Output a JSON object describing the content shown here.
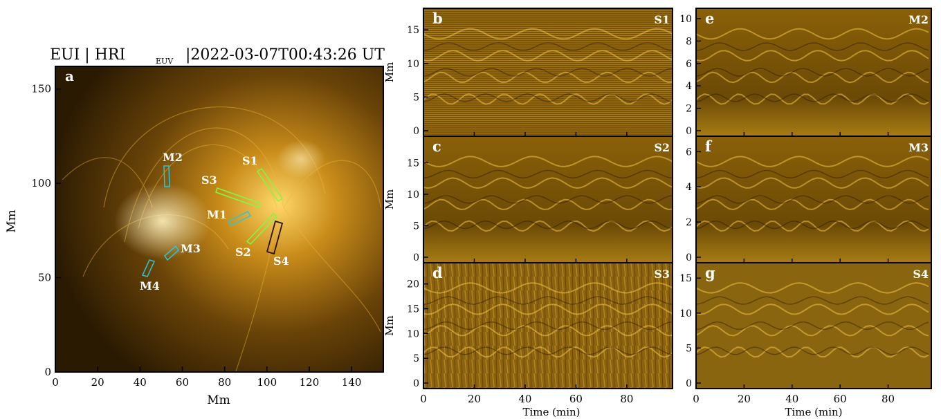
{
  "figure": {
    "panel_a": {
      "title": "EUI | HRI",
      "title_sub": "EUV",
      "title_time": "|2022-03-07T00:43:26 UT",
      "letter": "a",
      "xlabel": "Mm",
      "ylabel": "Mm",
      "xticks": [
        "0",
        "20",
        "40",
        "60",
        "80",
        "100",
        "120",
        "140"
      ],
      "yticks": [
        "0",
        "50",
        "100",
        "150"
      ],
      "slits": [
        "S1",
        "S2",
        "S3",
        "S4"
      ],
      "markers": [
        "M1",
        "M2",
        "M3",
        "M4"
      ]
    },
    "time_distance": {
      "xlabel": "Time (min)",
      "xticks": [
        "0",
        "20",
        "40",
        "60",
        "80"
      ],
      "panels": [
        {
          "letter": "b",
          "tag": "S1",
          "ylabel": "Mm",
          "yticks": [
            "0",
            "5",
            "10",
            "15"
          ]
        },
        {
          "letter": "c",
          "tag": "S2",
          "ylabel": "Mm",
          "yticks": [
            "0",
            "5",
            "10",
            "15"
          ]
        },
        {
          "letter": "d",
          "tag": "S3",
          "ylabel": "Mm",
          "yticks": [
            "0",
            "5",
            "10",
            "15",
            "20"
          ]
        },
        {
          "letter": "e",
          "tag": "M2",
          "ylabel": "",
          "yticks": [
            "0",
            "2",
            "4",
            "6",
            "8",
            "10"
          ]
        },
        {
          "letter": "f",
          "tag": "M3",
          "ylabel": "",
          "yticks": [
            "0",
            "2",
            "4",
            "6"
          ]
        },
        {
          "letter": "g",
          "tag": "S4",
          "ylabel": "",
          "yticks": [
            "0",
            "5",
            "10",
            "15"
          ]
        }
      ]
    },
    "colors": {
      "background": "#1e1400",
      "gold": "#e8a81c",
      "slit_green": "#7cfc40",
      "slit_cyan": "#28c8d8",
      "slit_dark": "#2a1000"
    }
  }
}
